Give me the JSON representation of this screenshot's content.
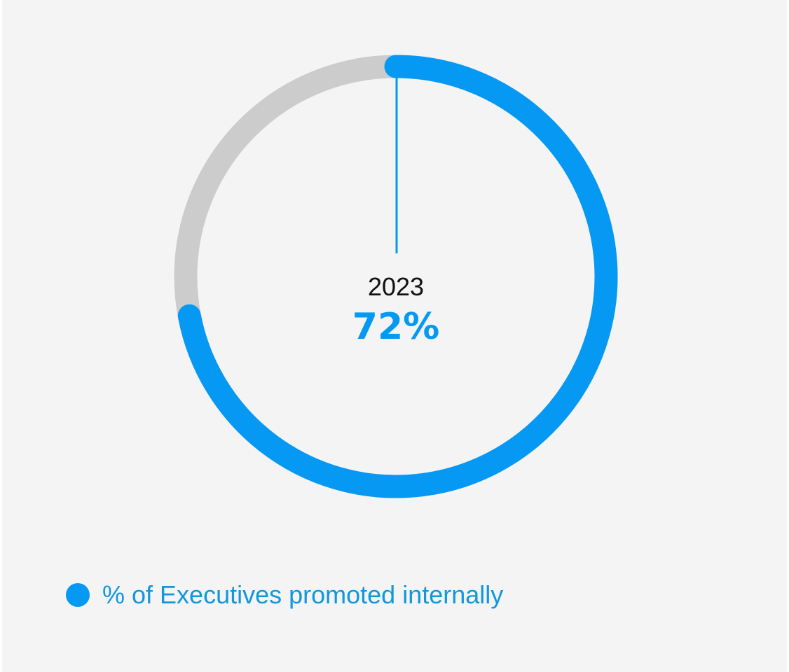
{
  "chart_data": {
    "type": "pie",
    "style": "donut",
    "categories": [
      "% of Executives promoted internally",
      "other"
    ],
    "values": [
      72,
      28
    ],
    "center_label": "2023",
    "center_value": "72%",
    "legend": {
      "placement": "bottom-left",
      "entries": [
        "% of Executives promoted internally"
      ]
    }
  },
  "colors": {
    "accent": "#0599f4",
    "legend_text": "#1197dd",
    "track": "#cccccc",
    "background": "#f4f4f4"
  }
}
